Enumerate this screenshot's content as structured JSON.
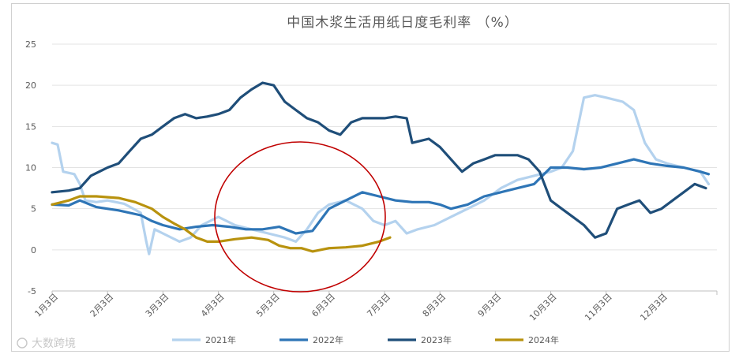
{
  "chart_data": {
    "type": "line",
    "title": "中国木浆生活用纸日度毛利率 （%）",
    "xlabel": "",
    "ylabel": "",
    "ylim": [
      -5,
      25
    ],
    "yticks": [
      -5,
      0,
      5,
      10,
      15,
      20,
      25
    ],
    "xticks": [
      "1月3日",
      "2月3日",
      "3月3日",
      "4月3日",
      "5月3日",
      "6月3日",
      "7月3日",
      "8月3日",
      "9月3日",
      "10月3日",
      "11月3日",
      "12月3日"
    ],
    "grid": "horizontal",
    "legend_position": "bottom",
    "series": [
      {
        "name": "2021年",
        "color": "#b4d2ee",
        "points": [
          [
            0,
            13
          ],
          [
            0.1,
            12.8
          ],
          [
            0.2,
            9.5
          ],
          [
            0.4,
            9.2
          ],
          [
            0.5,
            8
          ],
          [
            0.6,
            6
          ],
          [
            0.8,
            5.8
          ],
          [
            1,
            6
          ],
          [
            1.3,
            5.6
          ],
          [
            1.6,
            4.5
          ],
          [
            1.7,
            1
          ],
          [
            1.75,
            -0.5
          ],
          [
            1.85,
            2.5
          ],
          [
            2.0,
            2
          ],
          [
            2.3,
            1
          ],
          [
            2.5,
            1.5
          ],
          [
            2.7,
            3
          ],
          [
            3.0,
            4
          ],
          [
            3.3,
            3
          ],
          [
            3.6,
            2.5
          ],
          [
            3.9,
            2
          ],
          [
            4.2,
            1.5
          ],
          [
            4.4,
            1
          ],
          [
            4.6,
            2.5
          ],
          [
            4.8,
            4.5
          ],
          [
            5.0,
            5.5
          ],
          [
            5.3,
            6
          ],
          [
            5.6,
            5
          ],
          [
            5.8,
            3.5
          ],
          [
            6.0,
            3
          ],
          [
            6.2,
            3.5
          ],
          [
            6.4,
            2
          ],
          [
            6.6,
            2.5
          ],
          [
            6.9,
            3
          ],
          [
            7.2,
            4
          ],
          [
            7.5,
            5
          ],
          [
            7.8,
            6
          ],
          [
            8.1,
            7.5
          ],
          [
            8.4,
            8.5
          ],
          [
            8.7,
            9
          ],
          [
            9.0,
            9.5
          ],
          [
            9.2,
            10
          ],
          [
            9.4,
            12
          ],
          [
            9.6,
            18.5
          ],
          [
            9.8,
            18.8
          ],
          [
            10.0,
            18.5
          ],
          [
            10.3,
            18
          ],
          [
            10.5,
            17
          ],
          [
            10.7,
            13
          ],
          [
            10.9,
            11
          ],
          [
            11.1,
            10.5
          ],
          [
            11.4,
            10
          ],
          [
            11.7,
            9.5
          ],
          [
            11.85,
            8
          ]
        ]
      },
      {
        "name": "2022年",
        "color": "#2e75b6",
        "points": [
          [
            0,
            5.5
          ],
          [
            0.3,
            5.4
          ],
          [
            0.5,
            6
          ],
          [
            0.8,
            5.2
          ],
          [
            1.2,
            4.8
          ],
          [
            1.6,
            4.2
          ],
          [
            1.8,
            3.5
          ],
          [
            2.0,
            3
          ],
          [
            2.3,
            2.5
          ],
          [
            2.6,
            2.8
          ],
          [
            2.9,
            3
          ],
          [
            3.2,
            2.8
          ],
          [
            3.5,
            2.5
          ],
          [
            3.8,
            2.5
          ],
          [
            4.1,
            2.8
          ],
          [
            4.4,
            2
          ],
          [
            4.7,
            2.3
          ],
          [
            5.0,
            5
          ],
          [
            5.3,
            6
          ],
          [
            5.6,
            7
          ],
          [
            5.9,
            6.5
          ],
          [
            6.2,
            6
          ],
          [
            6.5,
            5.8
          ],
          [
            6.8,
            5.8
          ],
          [
            7.0,
            5.5
          ],
          [
            7.2,
            5
          ],
          [
            7.5,
            5.5
          ],
          [
            7.8,
            6.5
          ],
          [
            8.1,
            7
          ],
          [
            8.4,
            7.5
          ],
          [
            8.7,
            8
          ],
          [
            9.0,
            10
          ],
          [
            9.3,
            10
          ],
          [
            9.6,
            9.8
          ],
          [
            9.9,
            10
          ],
          [
            10.2,
            10.5
          ],
          [
            10.5,
            11
          ],
          [
            10.8,
            10.5
          ],
          [
            11.1,
            10.2
          ],
          [
            11.4,
            10
          ],
          [
            11.7,
            9.5
          ],
          [
            11.85,
            9.2
          ]
        ]
      },
      {
        "name": "2023年",
        "color": "#1f4e79",
        "points": [
          [
            0,
            7
          ],
          [
            0.3,
            7.2
          ],
          [
            0.5,
            7.5
          ],
          [
            0.7,
            9
          ],
          [
            1.0,
            10
          ],
          [
            1.2,
            10.5
          ],
          [
            1.4,
            12
          ],
          [
            1.6,
            13.5
          ],
          [
            1.8,
            14
          ],
          [
            2.0,
            15
          ],
          [
            2.2,
            16
          ],
          [
            2.4,
            16.5
          ],
          [
            2.6,
            16
          ],
          [
            2.8,
            16.2
          ],
          [
            3.0,
            16.5
          ],
          [
            3.2,
            17
          ],
          [
            3.4,
            18.5
          ],
          [
            3.6,
            19.5
          ],
          [
            3.8,
            20.3
          ],
          [
            4.0,
            20
          ],
          [
            4.2,
            18
          ],
          [
            4.4,
            17
          ],
          [
            4.6,
            16
          ],
          [
            4.8,
            15.5
          ],
          [
            5.0,
            14.5
          ],
          [
            5.2,
            14
          ],
          [
            5.4,
            15.5
          ],
          [
            5.6,
            16
          ],
          [
            5.8,
            16
          ],
          [
            6.0,
            16
          ],
          [
            6.2,
            16.2
          ],
          [
            6.4,
            16
          ],
          [
            6.5,
            13
          ],
          [
            6.8,
            13.5
          ],
          [
            7.0,
            12.5
          ],
          [
            7.2,
            11
          ],
          [
            7.4,
            9.5
          ],
          [
            7.6,
            10.5
          ],
          [
            7.8,
            11
          ],
          [
            8.0,
            11.5
          ],
          [
            8.2,
            11.5
          ],
          [
            8.4,
            11.5
          ],
          [
            8.6,
            11
          ],
          [
            8.8,
            9.5
          ],
          [
            9.0,
            6
          ],
          [
            9.2,
            5
          ],
          [
            9.4,
            4
          ],
          [
            9.6,
            3
          ],
          [
            9.8,
            1.5
          ],
          [
            10.0,
            2
          ],
          [
            10.2,
            5
          ],
          [
            10.4,
            5.5
          ],
          [
            10.6,
            6
          ],
          [
            10.8,
            4.5
          ],
          [
            11.0,
            5
          ],
          [
            11.2,
            6
          ],
          [
            11.4,
            7
          ],
          [
            11.6,
            8
          ],
          [
            11.8,
            7.5
          ]
        ]
      },
      {
        "name": "2024年",
        "color": "#b8920e",
        "points": [
          [
            0,
            5.5
          ],
          [
            0.3,
            6
          ],
          [
            0.5,
            6.5
          ],
          [
            0.8,
            6.5
          ],
          [
            1.2,
            6.3
          ],
          [
            1.5,
            5.8
          ],
          [
            1.8,
            5
          ],
          [
            2.0,
            4
          ],
          [
            2.2,
            3.2
          ],
          [
            2.4,
            2.5
          ],
          [
            2.6,
            1.5
          ],
          [
            2.8,
            1
          ],
          [
            3.0,
            1
          ],
          [
            3.3,
            1.3
          ],
          [
            3.6,
            1.5
          ],
          [
            3.9,
            1.2
          ],
          [
            4.1,
            0.5
          ],
          [
            4.3,
            0.2
          ],
          [
            4.5,
            0.2
          ],
          [
            4.7,
            -0.2
          ],
          [
            5.0,
            0.2
          ],
          [
            5.3,
            0.3
          ],
          [
            5.6,
            0.5
          ],
          [
            5.9,
            1
          ],
          [
            6.1,
            1.5
          ]
        ]
      }
    ],
    "watermark": "大数跨境"
  }
}
